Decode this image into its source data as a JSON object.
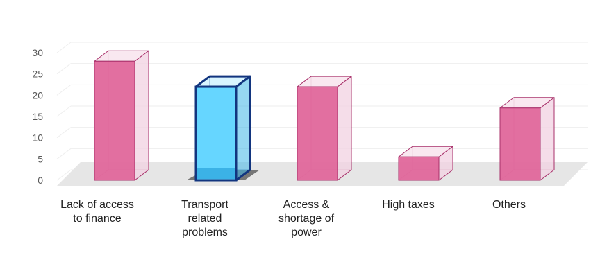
{
  "chart_data": {
    "type": "bar",
    "title": "",
    "xlabel": "",
    "ylabel": "",
    "ylim": [
      0,
      30
    ],
    "yticks": [
      0,
      5,
      10,
      15,
      20,
      25,
      30
    ],
    "grid": true,
    "legend": "none",
    "categories": [
      [
        "Lack of access",
        "to finance"
      ],
      [
        "Transport",
        "related",
        "problems"
      ],
      [
        "Access &",
        "shortage of",
        "power"
      ],
      [
        "High taxes"
      ],
      [
        "Others"
      ]
    ],
    "values": [
      28,
      22,
      22,
      5.5,
      17
    ],
    "highlighted_category_index": 1,
    "colors": {
      "bar": "#e0679b",
      "bar_edge": "#a8306a",
      "highlight": "#66d6ff",
      "highlight_edge": "#12357f",
      "floor": "#e6e6e6",
      "gridline": "#eeeeee"
    }
  }
}
